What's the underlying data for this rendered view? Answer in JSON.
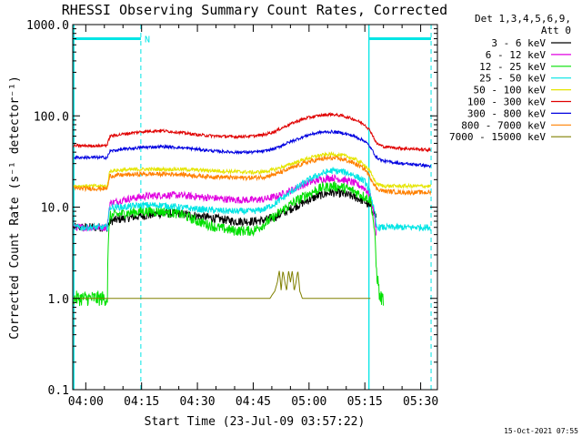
{
  "chart_data": {
    "type": "line",
    "title": "RHESSI Observing Summary Count Rates, Corrected",
    "xlabel": "Start Time (23-Jul-09 03:57:22)",
    "ylabel": "Corrected Count Rate (s⁻¹ detector⁻¹)",
    "x_unit": "minutes of day (UT)",
    "xlim": [
      236.5,
      334.5
    ],
    "ylim": [
      0.1,
      1000
    ],
    "y_scale": "log",
    "x_ticks": [
      {
        "t": 240,
        "label": "04:00"
      },
      {
        "t": 255,
        "label": "04:15"
      },
      {
        "t": 270,
        "label": "04:30"
      },
      {
        "t": 285,
        "label": "04:45"
      },
      {
        "t": 300,
        "label": "05:00"
      },
      {
        "t": 315,
        "label": "05:15"
      },
      {
        "t": 330,
        "label": "05:30"
      }
    ],
    "y_ticks": [
      {
        "v": 0.1,
        "label": "0.1"
      },
      {
        "v": 1,
        "label": "1.0"
      },
      {
        "v": 10,
        "label": "10.0"
      },
      {
        "v": 100,
        "label": "100.0"
      },
      {
        "v": 1000,
        "label": "1000.0"
      }
    ],
    "legend_header": [
      "Det 1,3,4,5,6,9,",
      "Att 0"
    ],
    "legend_placement": "right, outside plot",
    "annotations": [
      {
        "text": "N",
        "t": 255.8,
        "v": 700
      }
    ],
    "footer": "15-Oct-2021 07:55",
    "night_markers": {
      "color": "#00e5e5",
      "solid_lines": [
        236.8,
        316.1
      ],
      "dashed_lines": [
        254.8,
        332.8
      ],
      "bars": [
        [
          236.8,
          254.8
        ],
        [
          316.1,
          332.8
        ]
      ],
      "bar_level": 700
    },
    "series": [
      {
        "name": "3 - 6 keV",
        "color": "#000000",
        "x": [
          236.8,
          244.0,
          245.8,
          246.5,
          250,
          255,
          260,
          265,
          270,
          275,
          280,
          285,
          288,
          291,
          294,
          297,
          300,
          303,
          306,
          309,
          312,
          315,
          316.5,
          318.1
        ],
        "values": [
          6,
          6,
          6,
          7,
          7.5,
          8,
          8.5,
          8.5,
          8.0,
          7.5,
          7.0,
          7.0,
          7.2,
          7.8,
          9,
          10.5,
          12,
          13.5,
          14.5,
          14,
          13,
          11.5,
          10,
          8
        ]
      },
      {
        "name": "6 - 12 keV",
        "color": "#e000e0",
        "x": [
          236.8,
          244.0,
          245.8,
          246.5,
          250,
          255,
          260,
          265,
          270,
          275,
          280,
          285,
          288,
          291,
          294,
          297,
          300,
          303,
          306,
          309,
          312,
          315,
          316.5,
          318.1
        ],
        "values": [
          6,
          6,
          6,
          11,
          12,
          13,
          13.5,
          13.5,
          13,
          12.5,
          12,
          12,
          12.2,
          13,
          14.5,
          16.5,
          18.5,
          20,
          21,
          20,
          18.5,
          16,
          13,
          5
        ]
      },
      {
        "name": "12 - 25 keV",
        "color": "#00e000",
        "x": [
          236.8,
          244.0,
          245.0,
          245.8,
          246.5,
          250,
          255,
          260,
          265,
          270,
          275,
          280,
          285,
          288,
          291,
          294,
          297,
          300,
          303,
          306,
          309,
          312,
          315,
          316.5,
          318.1,
          319.0,
          320.0
        ],
        "values": [
          1,
          1,
          1,
          1,
          8,
          8.5,
          9,
          9,
          8.5,
          7,
          6,
          5.5,
          5.5,
          6.5,
          8,
          10,
          12,
          14,
          16,
          17,
          16.5,
          15,
          13,
          12,
          2,
          1,
          1
        ]
      },
      {
        "name": "25 - 50 keV",
        "color": "#00e5e5",
        "x": [
          236.8,
          244.0,
          245.8,
          246.5,
          250,
          255,
          260,
          265,
          270,
          275,
          280,
          285,
          288,
          291,
          294,
          297,
          300,
          303,
          306,
          309,
          312,
          315,
          316.5,
          318.1,
          320,
          325,
          330,
          332.8
        ],
        "values": [
          6,
          6,
          6,
          10,
          10,
          10.5,
          10.5,
          10,
          9.5,
          9.2,
          9,
          9,
          9.5,
          11,
          13.5,
          16.5,
          20,
          23,
          25,
          24.5,
          22.5,
          19,
          14,
          6,
          6,
          6,
          6,
          6
        ]
      },
      {
        "name": "50 - 100 keV",
        "color": "#e5e500",
        "x": [
          236.8,
          244.0,
          245.8,
          246.5,
          250,
          255,
          260,
          265,
          270,
          275,
          280,
          285,
          288,
          291,
          294,
          297,
          300,
          303,
          306,
          309,
          312,
          315,
          316.5,
          318.1,
          320,
          325,
          330,
          332.8
        ],
        "values": [
          17,
          17,
          17,
          25,
          25.5,
          26,
          26,
          26,
          25.5,
          25,
          24.5,
          24,
          24.5,
          26,
          28.5,
          31.5,
          34.5,
          37,
          38,
          37,
          34,
          29,
          24,
          18,
          17,
          17,
          17,
          17
        ]
      },
      {
        "name": "100 - 300 keV",
        "color": "#e00000",
        "x": [
          236.8,
          244.0,
          245.8,
          246.5,
          250,
          255,
          260,
          265,
          270,
          275,
          280,
          285,
          288,
          291,
          294,
          297,
          300,
          303,
          306,
          309,
          312,
          315,
          316.5,
          318.1,
          320,
          325,
          330,
          332.8
        ],
        "values": [
          47,
          47,
          48,
          60,
          63,
          67,
          69,
          66,
          62,
          60,
          59,
          60,
          62,
          68,
          78,
          88,
          96,
          101,
          104,
          100,
          92,
          80,
          68,
          50,
          46,
          44,
          43,
          42
        ]
      },
      {
        "name": "300 - 800 keV",
        "color": "#0000e0",
        "x": [
          236.8,
          244.0,
          245.8,
          246.5,
          250,
          255,
          260,
          265,
          270,
          275,
          280,
          285,
          288,
          291,
          294,
          297,
          300,
          303,
          306,
          309,
          312,
          315,
          316.5,
          318.1,
          320,
          325,
          330,
          332.8
        ],
        "values": [
          35,
          35,
          35,
          41,
          43,
          45,
          46,
          45,
          43,
          41,
          40,
          40,
          41,
          44,
          50,
          56,
          62,
          66,
          67,
          65,
          60,
          53,
          45,
          35,
          32,
          30,
          29,
          28
        ]
      },
      {
        "name": "800 - 7000 keV",
        "color": "#ff8000",
        "x": [
          236.8,
          244.0,
          245.8,
          246.5,
          250,
          255,
          260,
          265,
          270,
          275,
          280,
          285,
          288,
          291,
          294,
          297,
          300,
          303,
          306,
          309,
          312,
          315,
          316.5,
          318.1,
          320,
          325,
          330,
          332.8
        ],
        "values": [
          16,
          16,
          16,
          22,
          22.5,
          23,
          23,
          23,
          22,
          21.5,
          21,
          21,
          21.5,
          23,
          25.5,
          28.5,
          31.5,
          33.5,
          34.5,
          33.5,
          30.5,
          26,
          21,
          16,
          15,
          14.5,
          14.5,
          14.5
        ]
      },
      {
        "name": "7000 - 15000 keV",
        "color": "#808000",
        "x": [
          236.8,
          244.0,
          246.5,
          250,
          255,
          260,
          265,
          270,
          275,
          280,
          285,
          289.5,
          290.8,
          291.5,
          292,
          292.5,
          293,
          293.5,
          294,
          294.5,
          295,
          295.5,
          296,
          296.5,
          297,
          297.5,
          298.2,
          299.5,
          303,
          308,
          312,
          316.5
        ],
        "values": [
          1,
          1,
          1,
          1,
          1,
          1,
          1,
          1,
          1,
          1,
          1,
          1,
          1.2,
          1.5,
          2,
          1.2,
          2,
          1.5,
          1.2,
          2,
          1.5,
          2,
          1.2,
          1.5,
          2,
          1.2,
          1,
          1,
          1,
          1,
          1,
          1
        ]
      }
    ]
  }
}
